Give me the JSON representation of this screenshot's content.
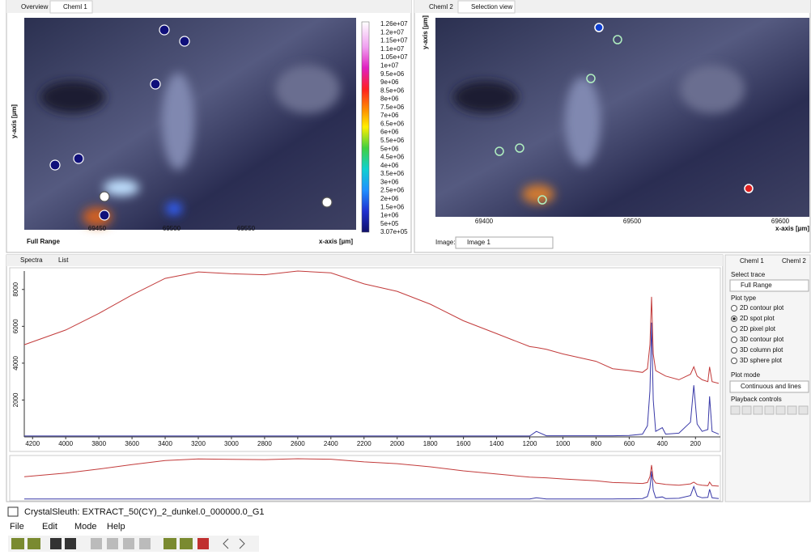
{
  "left_view": {
    "tabs": [
      "Overview",
      "Cheml 1"
    ],
    "y_axis_label": "y-axis [µm]",
    "x_axis_label": "x-axis [µm]",
    "xticks": [
      69450,
      69500,
      69550
    ],
    "range_label": "Full Range",
    "colorbar_labels": [
      "1.26e+07",
      "1.2e+07",
      "1.15e+07",
      "1.1e+07",
      "1.05e+07",
      "1e+07",
      "9.5e+06",
      "9e+06",
      "8.5e+06",
      "8e+06",
      "7.5e+06",
      "7e+06",
      "6.5e+06",
      "6e+06",
      "5.5e+06",
      "5e+06",
      "4.5e+06",
      "4e+06",
      "3.5e+06",
      "3e+06",
      "2.5e+06",
      "2e+06",
      "1.5e+06",
      "1e+06",
      "5e+05",
      "3.07e+05"
    ]
  },
  "right_view": {
    "tabs": [
      "Cheml 2",
      "Selection view"
    ],
    "y_axis_label": "y-axis [µm]",
    "x_axis_label": "x-axis [µm]",
    "xticks": [
      69400,
      69500,
      69600
    ],
    "image_label": "Image:",
    "image_select": "Image 1"
  },
  "spectra_tabs": [
    "Spectra",
    "List"
  ],
  "chart_data": {
    "type": "line",
    "x": [
      4250,
      4000,
      3800,
      3600,
      3400,
      3200,
      3000,
      2800,
      2600,
      2400,
      2200,
      2000,
      1800,
      1600,
      1400,
      1200,
      1160,
      1100,
      1000,
      800,
      700,
      600,
      520,
      490,
      475,
      465,
      455,
      440,
      400,
      380,
      300,
      230,
      210,
      190,
      160,
      125,
      115,
      100,
      60
    ],
    "series": [
      {
        "color": "#c23b3b",
        "values": [
          5000,
          5800,
          6700,
          7700,
          8600,
          8950,
          8850,
          8800,
          9000,
          8900,
          8300,
          7900,
          7200,
          6300,
          5600,
          4900,
          4850,
          4750,
          4500,
          4100,
          3700,
          3600,
          3500,
          3700,
          5000,
          7600,
          4500,
          3600,
          3400,
          3300,
          3100,
          3400,
          3800,
          3300,
          3100,
          3000,
          3800,
          3000,
          2900
        ]
      },
      {
        "color": "#3a3aa8",
        "values": [
          50,
          50,
          50,
          50,
          50,
          50,
          50,
          50,
          50,
          50,
          50,
          50,
          50,
          50,
          50,
          50,
          300,
          60,
          60,
          60,
          60,
          80,
          150,
          600,
          2500,
          6200,
          2000,
          300,
          500,
          150,
          200,
          800,
          2800,
          700,
          300,
          400,
          2200,
          300,
          150
        ]
      }
    ],
    "xlim": [
      4250,
      50
    ],
    "ylim": [
      0,
      9000
    ],
    "xticks": [
      4200,
      4000,
      3800,
      3600,
      3400,
      3200,
      3000,
      2800,
      2600,
      2400,
      2200,
      2000,
      1800,
      1600,
      1400,
      1200,
      1000,
      800,
      600,
      400,
      200
    ],
    "yticks": [
      2000,
      4000,
      6000,
      8000
    ]
  },
  "side_panel": {
    "tabs": [
      "Cheml 1",
      "Cheml 2"
    ],
    "select_trace_label": "Select trace",
    "trace": "Full Range",
    "plot_type_label": "Plot type",
    "plot_types": [
      "2D contour plot",
      "2D spot plot",
      "2D pixel plot",
      "3D contour plot",
      "3D column plot",
      "3D sphere plot"
    ],
    "selected_plot_type": 1,
    "plot_mode_label": "Plot mode",
    "plot_mode": "Continuous and lines",
    "playback_label": "Playback controls"
  },
  "window": {
    "title": "CrystalSleuth: EXTRACT_50(CY)_2_dunkel.0_000000.0_G1",
    "menu": [
      "File",
      "Edit",
      "Mode",
      "Help"
    ]
  }
}
